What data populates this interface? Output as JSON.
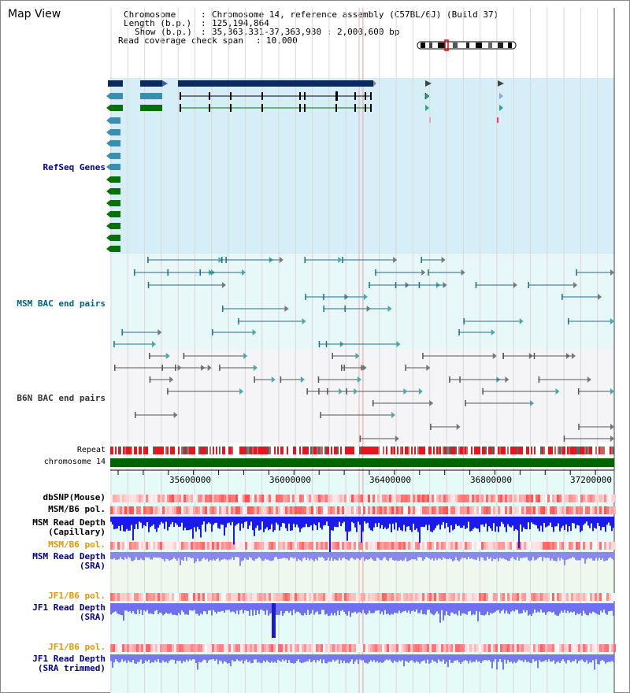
{
  "window": {
    "title": "Map View"
  },
  "header": {
    "chromosome_key": "Chromosome",
    "chromosome_value": "Chromosome 14, reference assembly (C57BL/6J) (Build 37)",
    "length_key": "Length (b.p.)",
    "length_value": "125,194,864",
    "show_key": "Show (b.p.)",
    "show_value": "35,363,331-37,363,930 : 2,000,600 bp",
    "coverage_key": "Read coverage check span",
    "coverage_value": "10,000",
    "sep": ":"
  },
  "tracks": {
    "refseq": {
      "label": "RefSeq Genes",
      "color": "#00008b",
      "bg": "#d6eef8"
    },
    "msm_bac": {
      "label": "MSM BAC end pairs",
      "color": "#005f87",
      "bg": "#e8f8f8"
    },
    "b6n_bac": {
      "label": "B6N BAC end pairs",
      "color": "#333333",
      "bg": "#f5f5f8"
    },
    "repeat": {
      "label": "Repeat"
    },
    "chromosome": {
      "label": "chromosome 14",
      "color": "#006400"
    }
  },
  "axis": {
    "ticks": [
      "35600000",
      "36000000",
      "36400000",
      "36800000",
      "37200000"
    ]
  },
  "lower_tracks": [
    {
      "key": "dbsnp",
      "lines": [
        "dbSNP(Mouse)"
      ],
      "color": "#000000"
    },
    {
      "key": "msm_b6_pol_1",
      "lines": [
        "MSM/B6 pol."
      ],
      "color": "#000000"
    },
    {
      "key": "msm_depth_cap",
      "lines": [
        "MSM Read Depth",
        "(Capillary)"
      ],
      "color": "#000000"
    },
    {
      "key": "msm_b6_pol_2",
      "lines": [
        "MSM/B6 pol."
      ],
      "color": "#e69500"
    },
    {
      "key": "msm_depth_sra",
      "lines": [
        "MSM Read Depth",
        "(SRA)"
      ],
      "color": "#00008b"
    },
    {
      "key": "jf1_b6_pol_1",
      "lines": [
        "JF1/B6 pol."
      ],
      "color": "#e69500"
    },
    {
      "key": "jf1_depth_sra",
      "lines": [
        "JF1 Read Depth",
        "(SRA)"
      ],
      "color": "#00008b"
    },
    {
      "key": "jf1_b6_pol_2",
      "lines": [
        "JF1/B6 pol."
      ],
      "color": "#e69500"
    },
    {
      "key": "jf1_depth_trim",
      "lines": [
        "JF1 Read Depth",
        "(SRA trimmed)"
      ],
      "color": "#00008b"
    }
  ]
}
